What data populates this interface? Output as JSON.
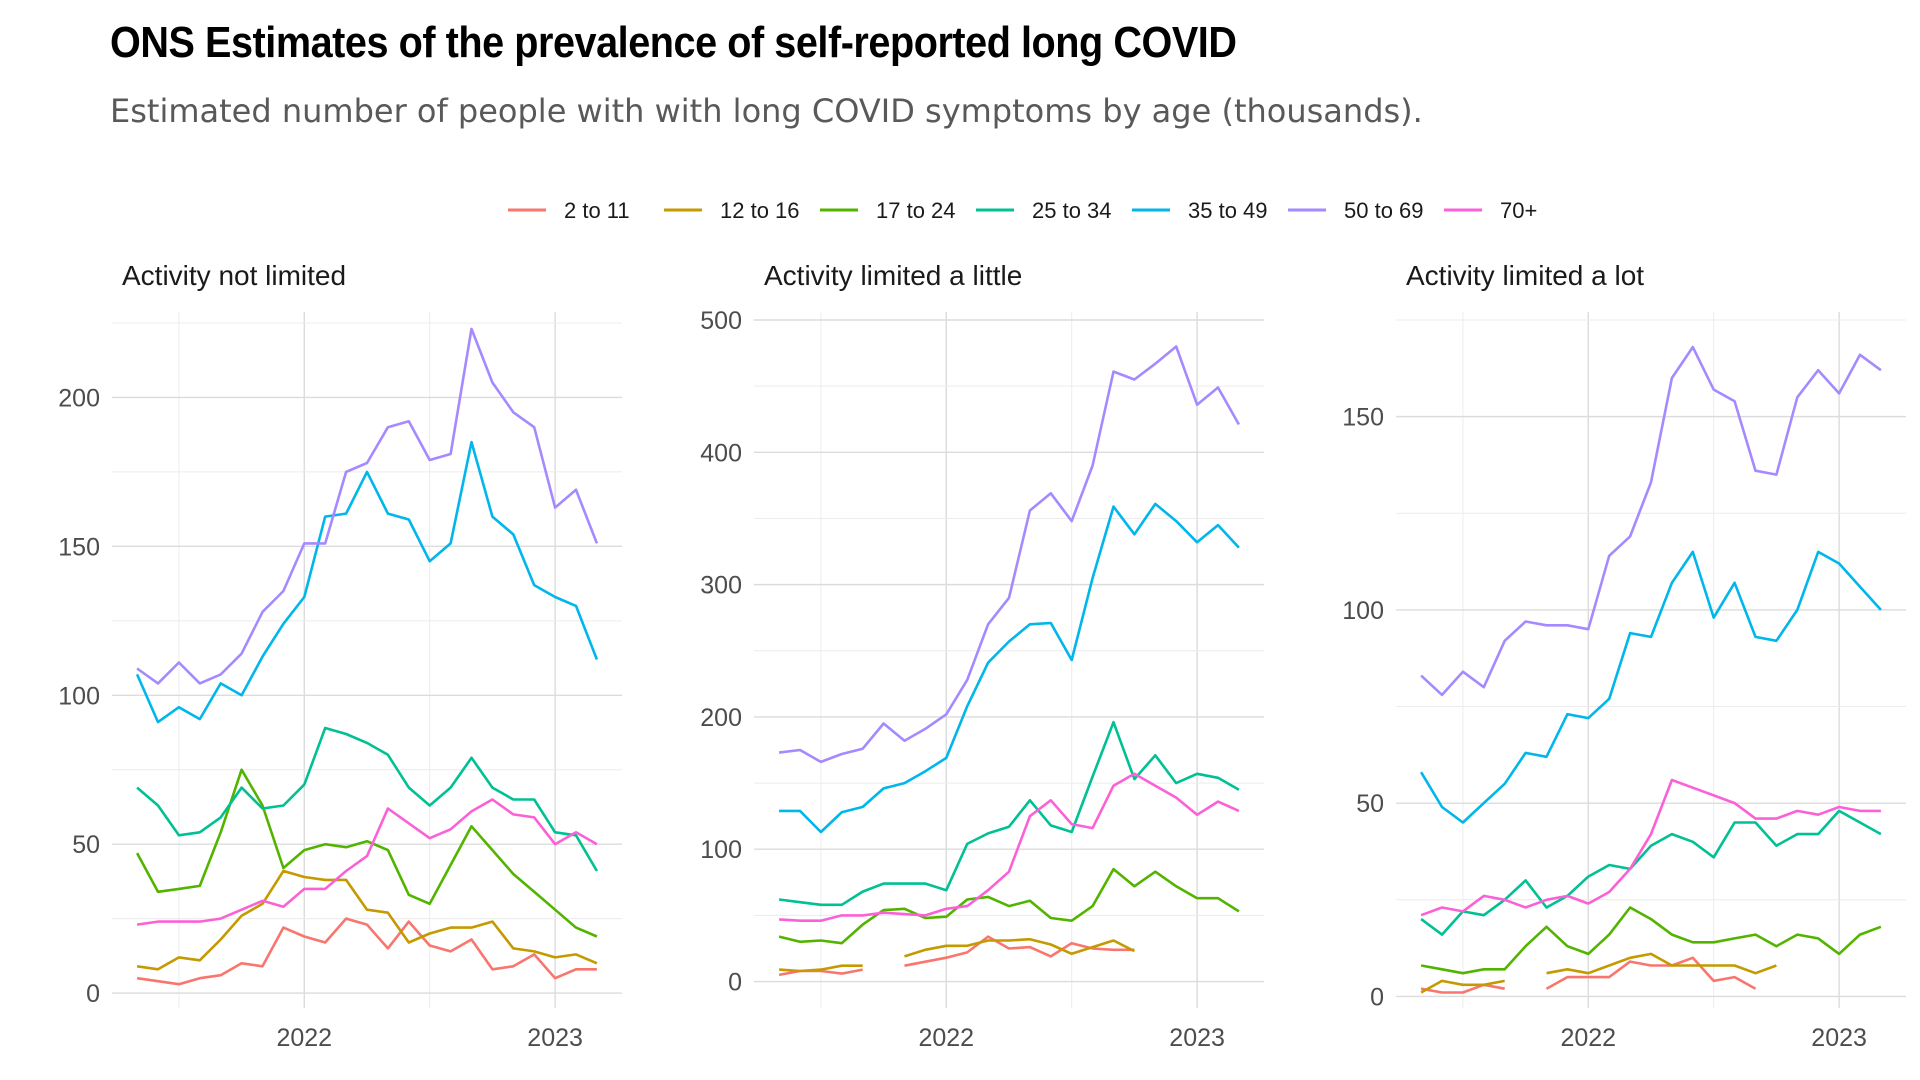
{
  "header": {
    "title": "ONS Estimates of the prevalence of self-reported long COVID",
    "subtitle": "Estimated number of people with with long COVID symptoms by age (thousands)."
  },
  "colors": {
    "2 to 11": "#F8766D",
    "12 to 16": "#C49A00",
    "17 to 24": "#53B400",
    "25 to 34": "#00C094",
    "35 to 49": "#00B6EB",
    "50 to 69": "#A58AFF",
    "70+": "#FB61D7"
  },
  "chart_data": [
    {
      "type": "line",
      "title": "Activity not limited",
      "x_dates": [
        "2021-05",
        "2021-06",
        "2021-07",
        "2021-08",
        "2021-09",
        "2021-10",
        "2021-11",
        "2021-12",
        "2022-01",
        "2022-02",
        "2022-03",
        "2022-04",
        "2022-05",
        "2022-06",
        "2022-07",
        "2022-08",
        "2022-09",
        "2022-10",
        "2022-11",
        "2022-12",
        "2023-01",
        "2023-02",
        "2023-03"
      ],
      "x_ticks": [
        "2022",
        "2023"
      ],
      "y_ticks": [
        0,
        50,
        100,
        150,
        200
      ],
      "ylim": [
        -5,
        226
      ],
      "series": [
        {
          "name": "2 to 11",
          "values": [
            5,
            4,
            3,
            5,
            6,
            10,
            9,
            22,
            19,
            17,
            25,
            23,
            15,
            24,
            16,
            14,
            18,
            8,
            9,
            13,
            5,
            8,
            8
          ]
        },
        {
          "name": "12 to 16",
          "values": [
            9,
            8,
            12,
            11,
            18,
            26,
            30,
            41,
            39,
            38,
            38,
            28,
            27,
            17,
            20,
            22,
            22,
            24,
            15,
            14,
            12,
            13,
            10
          ]
        },
        {
          "name": "17 to 24",
          "values": [
            47,
            34,
            35,
            36,
            54,
            75,
            63,
            42,
            48,
            50,
            49,
            51,
            48,
            33,
            30,
            43,
            56,
            48,
            40,
            34,
            28,
            22,
            19
          ]
        },
        {
          "name": "25 to 34",
          "values": [
            69,
            63,
            53,
            54,
            59,
            69,
            62,
            63,
            70,
            89,
            87,
            84,
            80,
            69,
            63,
            69,
            79,
            69,
            65,
            65,
            54,
            53,
            41
          ]
        },
        {
          "name": "35 to 49",
          "values": [
            107,
            91,
            96,
            92,
            104,
            100,
            113,
            124,
            133,
            160,
            161,
            175,
            161,
            159,
            145,
            151,
            185,
            160,
            154,
            137,
            133,
            130,
            112
          ]
        },
        {
          "name": "50 to 69",
          "values": [
            109,
            104,
            111,
            104,
            107,
            114,
            128,
            135,
            151,
            151,
            175,
            178,
            190,
            192,
            179,
            181,
            223,
            205,
            195,
            190,
            163,
            169,
            151
          ]
        },
        {
          "name": "70+",
          "values": [
            23,
            24,
            24,
            24,
            25,
            28,
            31,
            29,
            35,
            35,
            41,
            46,
            62,
            57,
            52,
            55,
            61,
            65,
            60,
            59,
            50,
            54,
            50
          ]
        }
      ]
    },
    {
      "type": "line",
      "title": "Activity limited a little",
      "x_dates": [
        "2021-05",
        "2021-06",
        "2021-07",
        "2021-08",
        "2021-09",
        "2021-10",
        "2021-11",
        "2021-12",
        "2022-01",
        "2022-02",
        "2022-03",
        "2022-04",
        "2022-05",
        "2022-06",
        "2022-07",
        "2022-08",
        "2022-09",
        "2022-10",
        "2022-11",
        "2022-12",
        "2023-01",
        "2023-02",
        "2023-03"
      ],
      "x_ticks": [
        "2022",
        "2023"
      ],
      "y_ticks": [
        0,
        100,
        200,
        300,
        400,
        500
      ],
      "ylim": [
        -20,
        500
      ],
      "series": [
        {
          "name": "2 to 11",
          "values": [
            5,
            8,
            8,
            6,
            9,
            null,
            12,
            15,
            18,
            22,
            34,
            25,
            26,
            19,
            29,
            25,
            24,
            24,
            null,
            null,
            null,
            null,
            null
          ]
        },
        {
          "name": "12 to 16",
          "values": [
            9,
            8,
            9,
            12,
            12,
            null,
            19,
            24,
            27,
            27,
            31,
            31,
            32,
            28,
            21,
            26,
            31,
            23,
            null,
            null,
            null,
            null,
            null
          ]
        },
        {
          "name": "17 to 24",
          "values": [
            34,
            30,
            31,
            29,
            43,
            54,
            55,
            48,
            49,
            62,
            64,
            57,
            61,
            48,
            46,
            57,
            85,
            72,
            83,
            72,
            63,
            63,
            53
          ]
        },
        {
          "name": "25 to 34",
          "values": [
            62,
            60,
            58,
            58,
            68,
            74,
            74,
            74,
            69,
            104,
            112,
            117,
            137,
            118,
            113,
            155,
            196,
            153,
            171,
            150,
            157,
            154,
            145
          ]
        },
        {
          "name": "35 to 49",
          "values": [
            129,
            129,
            113,
            128,
            132,
            146,
            150,
            159,
            169,
            208,
            241,
            257,
            270,
            271,
            243,
            305,
            359,
            338,
            361,
            348,
            332,
            345,
            328
          ]
        },
        {
          "name": "50 to 69",
          "values": [
            173,
            175,
            166,
            172,
            176,
            195,
            182,
            191,
            202,
            228,
            270,
            290,
            356,
            369,
            348,
            390,
            461,
            455,
            467,
            480,
            436,
            449,
            421
          ]
        },
        {
          "name": "70+",
          "values": [
            47,
            46,
            46,
            50,
            50,
            52,
            51,
            50,
            55,
            57,
            69,
            83,
            125,
            137,
            119,
            116,
            148,
            157,
            148,
            139,
            126,
            136,
            129
          ]
        }
      ]
    },
    {
      "type": "line",
      "title": "Activity limited a lot",
      "x_dates": [
        "2021-05",
        "2021-06",
        "2021-07",
        "2021-08",
        "2021-09",
        "2021-10",
        "2021-11",
        "2021-12",
        "2022-01",
        "2022-02",
        "2022-03",
        "2022-04",
        "2022-05",
        "2022-06",
        "2022-07",
        "2022-08",
        "2022-09",
        "2022-10",
        "2022-11",
        "2022-12",
        "2023-01",
        "2023-02",
        "2023-03"
      ],
      "x_ticks": [
        "2022",
        "2023"
      ],
      "y_ticks": [
        0,
        50,
        100,
        150
      ],
      "ylim": [
        -3,
        175
      ],
      "series": [
        {
          "name": "2 to 11",
          "values": [
            2,
            1,
            1,
            3,
            2,
            null,
            2,
            5,
            5,
            5,
            9,
            8,
            8,
            10,
            4,
            5,
            2,
            null,
            null,
            null,
            null,
            null,
            null
          ]
        },
        {
          "name": "12 to 16",
          "values": [
            1,
            4,
            3,
            3,
            4,
            null,
            6,
            7,
            6,
            8,
            10,
            11,
            8,
            8,
            8,
            8,
            6,
            8,
            null,
            null,
            null,
            null,
            null
          ]
        },
        {
          "name": "17 to 24",
          "values": [
            8,
            7,
            6,
            7,
            7,
            13,
            18,
            13,
            11,
            16,
            23,
            20,
            16,
            14,
            14,
            15,
            16,
            13,
            16,
            15,
            11,
            16,
            18
          ]
        },
        {
          "name": "25 to 34",
          "values": [
            20,
            16,
            22,
            21,
            25,
            30,
            23,
            26,
            31,
            34,
            33,
            39,
            42,
            40,
            36,
            45,
            45,
            39,
            42,
            42,
            48,
            45,
            42
          ]
        },
        {
          "name": "35 to 49",
          "values": [
            58,
            49,
            45,
            50,
            55,
            63,
            62,
            73,
            72,
            77,
            94,
            93,
            107,
            115,
            98,
            107,
            93,
            92,
            100,
            115,
            112,
            106,
            100
          ]
        },
        {
          "name": "50 to 69",
          "values": [
            83,
            78,
            84,
            80,
            92,
            97,
            96,
            96,
            95,
            114,
            119,
            133,
            160,
            168,
            157,
            154,
            136,
            135,
            155,
            162,
            156,
            166,
            162
          ]
        },
        {
          "name": "70+",
          "values": [
            21,
            23,
            22,
            26,
            25,
            23,
            25,
            26,
            24,
            27,
            33,
            42,
            56,
            54,
            52,
            50,
            46,
            46,
            48,
            47,
            49,
            48,
            48
          ]
        }
      ]
    }
  ]
}
